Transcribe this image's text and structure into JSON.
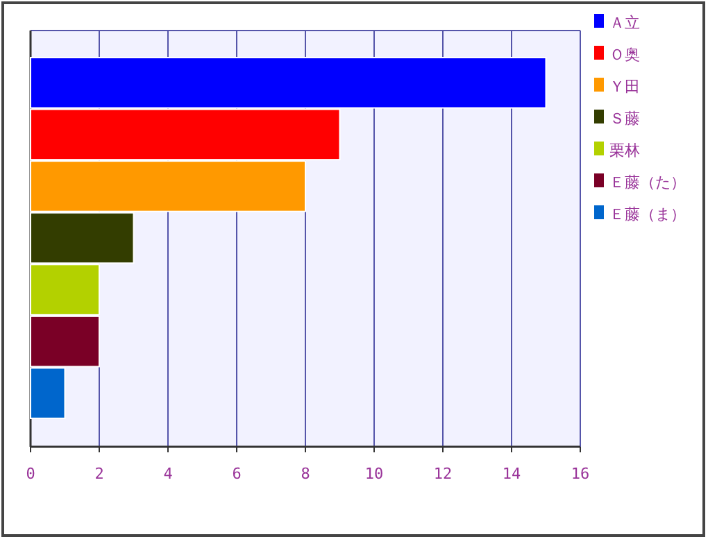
{
  "chart_data": {
    "type": "bar",
    "orientation": "horizontal",
    "categories": [
      null,
      null,
      null,
      null,
      null,
      null,
      null
    ],
    "series": [
      {
        "name": "Ａ立",
        "color": "#0000ff",
        "values": [
          15,
          null,
          null,
          null,
          null,
          null,
          null
        ]
      },
      {
        "name": "Ｏ奥",
        "color": "#ff0000",
        "values": [
          null,
          9,
          null,
          null,
          null,
          null,
          null
        ]
      },
      {
        "name": "Ｙ田",
        "color": "#ff9900",
        "values": [
          null,
          null,
          8,
          null,
          null,
          null,
          null
        ]
      },
      {
        "name": "Ｓ藤",
        "color": "#333d00",
        "values": [
          null,
          null,
          null,
          3,
          null,
          null,
          null
        ]
      },
      {
        "name": "栗林",
        "color": "#b3d100",
        "values": [
          null,
          null,
          null,
          null,
          2,
          null,
          null
        ]
      },
      {
        "name": "Ｅ藤（た）",
        "color": "#7a0026",
        "values": [
          null,
          null,
          null,
          null,
          null,
          2,
          null
        ]
      },
      {
        "name": "Ｅ藤（ま）",
        "color": "#0066cc",
        "values": [
          null,
          null,
          null,
          null,
          null,
          null,
          1
        ]
      }
    ],
    "xlim": [
      0,
      16
    ],
    "xticks": [
      0,
      2,
      4,
      6,
      8,
      10,
      12,
      14,
      16
    ],
    "grid": "x",
    "legend": "top right",
    "tick_labels": "x"
  }
}
